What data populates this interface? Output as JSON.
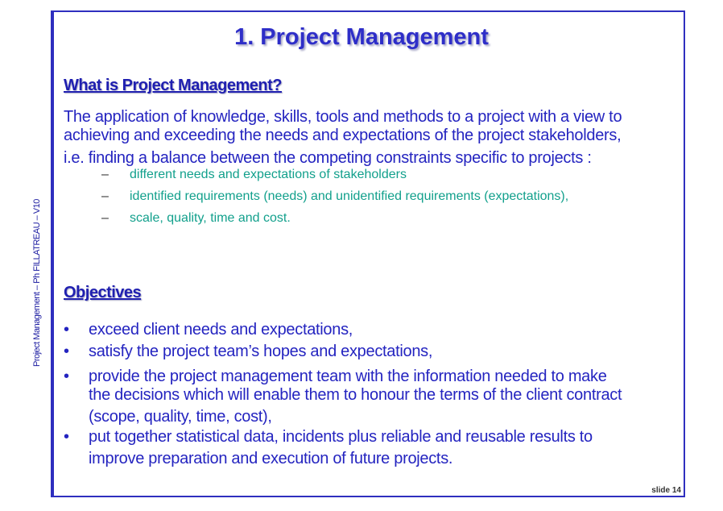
{
  "side_label": "Project Management – Ph FILLATREAU – V10",
  "title": "1. Project Management",
  "heading_what": "What is Project Management?",
  "intro": {
    "line1": "The application of knowledge, skills, tools and methods to a project with a view to",
    "line2": "achieving and exceeding the needs and expectations of  the project stakeholders,",
    "line3": "i.e. finding a balance between the competing constraints specific to projects :"
  },
  "constraints": [
    "different needs and expectations of stakeholders",
    "identified requirements (needs) and unidentified requirements (expectations),",
    "scale, quality, time and cost."
  ],
  "dash_mark": "–",
  "heading_objectives": "Objectives",
  "bullet_mark": "•",
  "objectives": {
    "b1": "exceed client needs and expectations,",
    "b2": "satisfy the project team’s hopes and expectations,",
    "b3_line1": "provide the project management team with the information needed to make",
    "b3_line2": "the decisions which will enable them to honour the terms of the client contract",
    "b3_line3": "(scope, quality, time, cost),",
    "b4_line1": "put together statistical data, incidents plus reliable and reusable results to",
    "b4_line2": "improve preparation and execution of future projects."
  },
  "slide_number": "slide 14"
}
